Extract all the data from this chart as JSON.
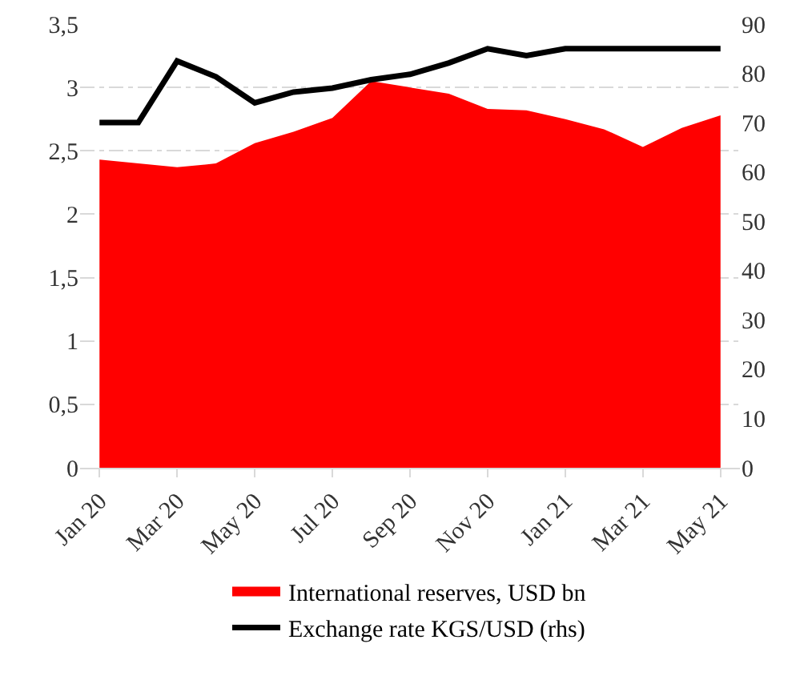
{
  "chart_data": {
    "type": "area",
    "categories": [
      "Jan 20",
      null,
      "Mar 20",
      null,
      "May 20",
      null,
      "Jul 20",
      null,
      "Sep 20",
      null,
      "Nov 20",
      null,
      "Jan 21",
      null,
      "Mar 21",
      null,
      "May 21"
    ],
    "series": [
      {
        "name": "International reserves, USD bn",
        "color": "#ff0000",
        "values": [
          2.43,
          2.4,
          2.37,
          2.4,
          2.56,
          2.65,
          2.76,
          3.05,
          3.0,
          2.95,
          2.83,
          2.82,
          2.75,
          2.67,
          2.53,
          2.68,
          2.78
        ]
      },
      {
        "name": "Exchange rate KGS/USD (rhs)",
        "color": "#000000",
        "type": "line",
        "axis": "y2",
        "values": [
          70,
          70,
          82.5,
          79.3,
          74,
          76.2,
          77,
          78.7,
          79.8,
          82.1,
          85,
          83.6,
          85,
          85,
          85,
          85,
          85
        ]
      }
    ],
    "ylim": [
      0,
      3.5
    ],
    "yticks": [
      0,
      {
        "value": 0.5,
        "label": "0,5"
      },
      1,
      {
        "value": 1.5,
        "label": "1,5"
      },
      2,
      {
        "value": 2.5,
        "label": "2,5"
      },
      3,
      {
        "value": 3.5,
        "label": "3,5"
      }
    ],
    "y2lim": [
      0,
      90
    ],
    "y2ticks": [
      0,
      10,
      20,
      30,
      40,
      50,
      60,
      70,
      80,
      90
    ],
    "grid": "y",
    "legend": "bottom",
    "line_style": "solid",
    "marker": "none"
  }
}
